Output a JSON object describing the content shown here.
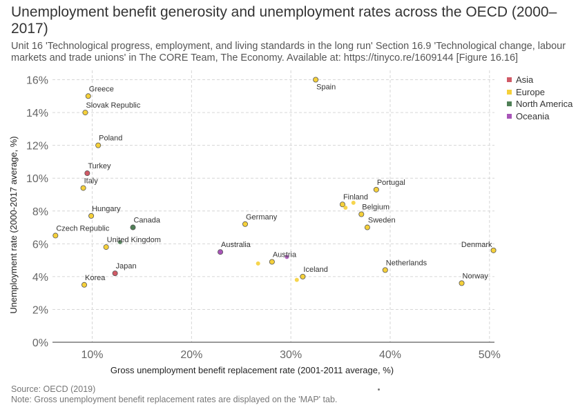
{
  "title": "Unemployment benefit generosity and unemployment rates across the OECD (2000–2017)",
  "subtitle": "Unit 16 'Technological progress, employment, and living standards in the long run' Section 16.9 'Technological change, labour markets and trade unions' in The CORE Team, The Economy. Available at: https://tinyco.re/1609144 [Figure 16.16]",
  "source": "Source: OECD (2019)",
  "note": "Note: Gross unemployment benefit replacement rates are displayed on the 'MAP' tab.",
  "legend": [
    {
      "name": "Asia",
      "color": "#d05a66"
    },
    {
      "name": "Europe",
      "color": "#f5d03a"
    },
    {
      "name": "North America",
      "color": "#4f7f56"
    },
    {
      "name": "Oceania",
      "color": "#a855b8"
    }
  ],
  "chart_data": {
    "type": "scatter",
    "xlabel": "Gross unemployment benefit replacement rate (2001-2011 average, %)",
    "ylabel": "Unemployment rate (2000-2017 average, %)",
    "xlim": [
      6,
      50.5
    ],
    "ylim": [
      0,
      16.4
    ],
    "x_ticks": [
      {
        "value": 10,
        "label": "10%"
      },
      {
        "value": 20,
        "label": "20%"
      },
      {
        "value": 30,
        "label": "30%"
      },
      {
        "value": 40,
        "label": "40%"
      },
      {
        "value": 50,
        "label": "50%"
      }
    ],
    "y_ticks": [
      {
        "value": 0,
        "label": "0%"
      },
      {
        "value": 2,
        "label": "2%"
      },
      {
        "value": 4,
        "label": "4%"
      },
      {
        "value": 6,
        "label": "6%"
      },
      {
        "value": 8,
        "label": "8%"
      },
      {
        "value": 10,
        "label": "10%"
      },
      {
        "value": 12,
        "label": "12%"
      },
      {
        "value": 14,
        "label": "14%"
      },
      {
        "value": 16,
        "label": "16%"
      }
    ],
    "grid": true,
    "legend_position": "right",
    "points": [
      {
        "label": "Spain",
        "region": "Europe",
        "x": 32.5,
        "y": 16.0,
        "label_pos": "below-right"
      },
      {
        "label": "Greece",
        "region": "Europe",
        "x": 9.6,
        "y": 15.0,
        "label_pos": "above-right"
      },
      {
        "label": "Slovak Republic",
        "region": "Europe",
        "x": 9.3,
        "y": 14.0,
        "label_pos": "above-right"
      },
      {
        "label": "Poland",
        "region": "Europe",
        "x": 10.6,
        "y": 12.0,
        "label_pos": "above-right"
      },
      {
        "label": "Turkey",
        "region": "Asia",
        "x": 9.5,
        "y": 10.3,
        "label_pos": "above-right"
      },
      {
        "label": "Italy",
        "region": "Europe",
        "x": 9.1,
        "y": 9.4,
        "label_pos": "above-right"
      },
      {
        "label": "Hungary",
        "region": "Europe",
        "x": 9.9,
        "y": 7.7,
        "label_pos": "above-right"
      },
      {
        "label": "Canada",
        "region": "North America",
        "x": 14.1,
        "y": 7.0,
        "label_pos": "above-right"
      },
      {
        "label": "Czech Republic",
        "region": "Europe",
        "x": 6.3,
        "y": 6.5,
        "label_pos": "above-right"
      },
      {
        "label": "United Kingdom",
        "region": "Europe",
        "x": 11.4,
        "y": 5.8,
        "label_pos": "above-right"
      },
      {
        "label": "",
        "region": "North America",
        "x": 12.8,
        "y": 6.1,
        "label_pos": "none"
      },
      {
        "label": "Japan",
        "region": "Asia",
        "x": 12.3,
        "y": 4.2,
        "label_pos": "above-right"
      },
      {
        "label": "Korea",
        "region": "Europe",
        "x": 9.2,
        "y": 3.5,
        "label_pos": "above-right"
      },
      {
        "label": "Australia",
        "region": "Oceania",
        "x": 22.9,
        "y": 5.5,
        "label_pos": "above-right"
      },
      {
        "label": "Germany",
        "region": "Europe",
        "x": 25.4,
        "y": 7.2,
        "label_pos": "above-right"
      },
      {
        "label": "Austria",
        "region": "Europe",
        "x": 28.1,
        "y": 4.9,
        "label_pos": "above-right"
      },
      {
        "label": "",
        "region": "Europe",
        "x": 26.7,
        "y": 4.8,
        "label_pos": "none"
      },
      {
        "label": "",
        "region": "Oceania",
        "x": 29.6,
        "y": 5.2,
        "label_pos": "none"
      },
      {
        "label": "Iceland",
        "region": "Europe",
        "x": 31.2,
        "y": 4.0,
        "label_pos": "above-right"
      },
      {
        "label": "",
        "region": "Europe",
        "x": 30.6,
        "y": 3.8,
        "label_pos": "none"
      },
      {
        "label": "Finland",
        "region": "Europe",
        "x": 35.2,
        "y": 8.4,
        "label_pos": "above-right"
      },
      {
        "label": "",
        "region": "Europe",
        "x": 35.5,
        "y": 8.2,
        "label_pos": "none"
      },
      {
        "label": "",
        "region": "Europe",
        "x": 36.3,
        "y": 8.5,
        "label_pos": "none"
      },
      {
        "label": "Portugal",
        "region": "Europe",
        "x": 38.6,
        "y": 9.3,
        "label_pos": "above-right"
      },
      {
        "label": "Belgium",
        "region": "Europe",
        "x": 37.1,
        "y": 7.8,
        "label_pos": "above-right"
      },
      {
        "label": "Sweden",
        "region": "Europe",
        "x": 37.7,
        "y": 7.0,
        "label_pos": "above-right"
      },
      {
        "label": "Netherlands",
        "region": "Europe",
        "x": 39.5,
        "y": 4.4,
        "label_pos": "above-right"
      },
      {
        "label": "Denmark",
        "region": "Europe",
        "x": 50.4,
        "y": 5.6,
        "label_pos": "above-left"
      },
      {
        "label": "Norway",
        "region": "Europe",
        "x": 47.2,
        "y": 3.6,
        "label_pos": "above-right"
      }
    ]
  }
}
